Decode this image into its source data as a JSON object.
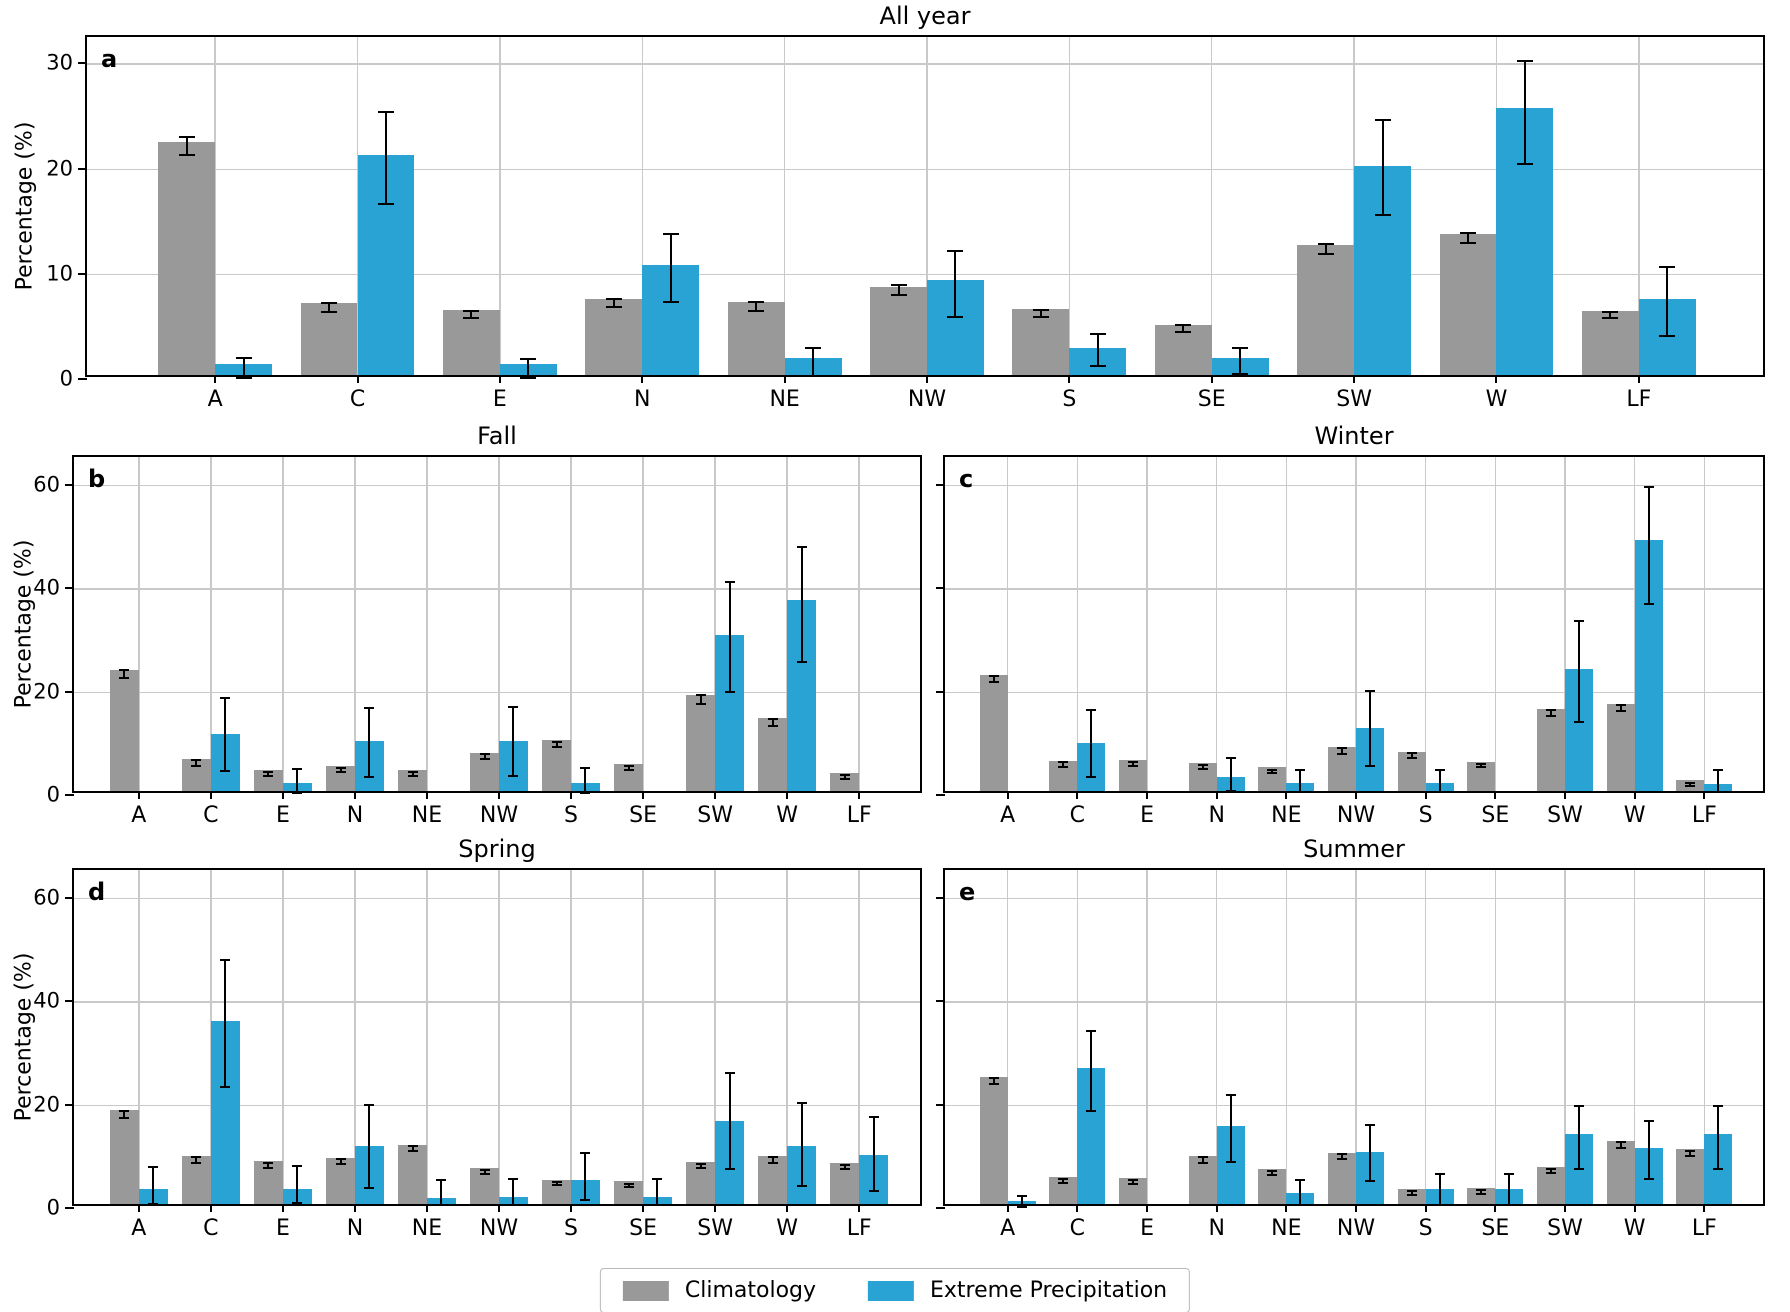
{
  "colors": {
    "climatology": "#999999",
    "extreme_precipitation": "#29A2D4",
    "grid": "#c9c9c9",
    "error_bar": "#000000"
  },
  "legend": {
    "items": [
      {
        "label": "Climatology",
        "color": "#999999"
      },
      {
        "label": "Extreme Precipitation",
        "color": "#29A2D4"
      }
    ]
  },
  "chart_data": [
    {
      "type": "bar",
      "letter": "a",
      "title": "All year",
      "ylabel": "Percentage (%)",
      "show_y_labels": true,
      "yticks": [
        0,
        10,
        20,
        30
      ],
      "ylim": [
        0,
        32.5
      ],
      "grid": true,
      "categories": [
        "A",
        "C",
        "E",
        "N",
        "NE",
        "NW",
        "S",
        "SE",
        "SW",
        "W",
        "LF"
      ],
      "series": [
        {
          "name": "Climatology",
          "color": "#999999",
          "values": [
            22.1,
            6.8,
            6.2,
            7.2,
            6.9,
            8.4,
            6.3,
            4.8,
            12.4,
            13.4,
            6.1
          ],
          "err_low": [
            21.3,
            6.4,
            5.8,
            6.8,
            6.5,
            8.0,
            5.9,
            4.5,
            11.9,
            12.9,
            5.8
          ],
          "err_high": [
            23.0,
            7.2,
            6.5,
            7.6,
            7.3,
            8.9,
            6.6,
            5.1,
            12.8,
            13.9,
            6.4
          ]
        },
        {
          "name": "Extreme Precipitation",
          "color": "#29A2D4",
          "values": [
            1.0,
            20.9,
            1.0,
            10.5,
            1.6,
            9.0,
            2.6,
            1.6,
            19.9,
            25.4,
            7.2
          ],
          "err_low": [
            0.1,
            16.6,
            0.1,
            7.3,
            0.3,
            5.9,
            1.2,
            0.5,
            15.6,
            20.4,
            4.1
          ],
          "err_high": [
            2.0,
            25.4,
            1.9,
            13.8,
            2.9,
            12.2,
            4.3,
            2.9,
            24.6,
            30.2,
            10.6
          ]
        }
      ]
    },
    {
      "type": "bar",
      "letter": "b",
      "title": "Fall",
      "ylabel": "Percentage (%)",
      "show_y_labels": true,
      "yticks": [
        0,
        20,
        40,
        60
      ],
      "ylim": [
        0,
        65.4
      ],
      "grid": true,
      "categories": [
        "A",
        "C",
        "E",
        "N",
        "NE",
        "NW",
        "S",
        "SE",
        "SW",
        "W",
        "LF"
      ],
      "series": [
        {
          "name": "Climatology",
          "color": "#999999",
          "values": [
            23.4,
            6.2,
            4.0,
            4.8,
            4.0,
            7.4,
            9.8,
            5.3,
            18.5,
            14.1,
            3.5
          ],
          "err_low": [
            22.7,
            5.7,
            3.6,
            4.4,
            3.6,
            6.9,
            9.3,
            4.9,
            17.7,
            13.4,
            3.1
          ],
          "err_high": [
            24.1,
            6.7,
            4.4,
            5.2,
            4.4,
            7.9,
            10.3,
            5.7,
            19.3,
            14.8,
            3.9
          ]
        },
        {
          "name": "Extreme Precipitation",
          "color": "#29A2D4",
          "values": [
            null,
            11.0,
            1.5,
            9.6,
            null,
            9.6,
            1.5,
            null,
            30.2,
            37.0,
            null
          ],
          "err_low": [
            null,
            4.6,
            0.3,
            3.5,
            null,
            3.7,
            0.3,
            null,
            20.0,
            25.8,
            null
          ],
          "err_high": [
            null,
            18.7,
            5.1,
            16.8,
            null,
            17.0,
            5.3,
            null,
            41.2,
            48.0,
            null
          ]
        }
      ]
    },
    {
      "type": "bar",
      "letter": "c",
      "title": "Winter",
      "ylabel": null,
      "show_y_labels": false,
      "yticks": [
        0,
        20,
        40,
        60
      ],
      "ylim": [
        0,
        65.4
      ],
      "grid": true,
      "categories": [
        "A",
        "C",
        "E",
        "N",
        "NE",
        "NW",
        "S",
        "SE",
        "SW",
        "W",
        "LF"
      ],
      "series": [
        {
          "name": "Climatology",
          "color": "#999999",
          "values": [
            22.4,
            5.9,
            6.0,
            5.5,
            4.6,
            8.5,
            7.6,
            5.7,
            15.9,
            16.9,
            2.1
          ],
          "err_low": [
            21.8,
            5.5,
            5.6,
            5.1,
            4.3,
            8.0,
            7.1,
            5.4,
            15.3,
            16.3,
            1.8
          ],
          "err_high": [
            23.0,
            6.3,
            6.4,
            5.9,
            4.9,
            9.0,
            8.1,
            6.0,
            16.5,
            17.5,
            2.4
          ]
        },
        {
          "name": "Extreme Precipitation",
          "color": "#29A2D4",
          "values": [
            null,
            9.3,
            null,
            2.7,
            1.5,
            12.1,
            1.5,
            null,
            23.6,
            48.5,
            1.4
          ],
          "err_low": [
            null,
            3.5,
            null,
            0.8,
            0.6,
            5.6,
            0.6,
            null,
            14.2,
            36.9,
            0.5
          ],
          "err_high": [
            null,
            16.5,
            null,
            7.1,
            4.8,
            20.1,
            4.8,
            null,
            33.6,
            59.5,
            4.9
          ]
        }
      ]
    },
    {
      "type": "bar",
      "letter": "d",
      "title": "Spring",
      "ylabel": "Percentage (%)",
      "show_y_labels": true,
      "yticks": [
        0,
        20,
        40,
        60
      ],
      "ylim": [
        0,
        65.4
      ],
      "grid": true,
      "categories": [
        "A",
        "C",
        "E",
        "N",
        "NE",
        "NW",
        "S",
        "SE",
        "SW",
        "W",
        "LF"
      ],
      "series": [
        {
          "name": "Climatology",
          "color": "#999999",
          "values": [
            18.1,
            9.3,
            8.3,
            9.0,
            11.5,
            7.0,
            4.7,
            4.4,
            8.1,
            9.3,
            7.9
          ],
          "err_low": [
            17.5,
            8.8,
            7.8,
            8.5,
            11.0,
            6.6,
            4.4,
            4.1,
            7.7,
            8.8,
            7.5
          ],
          "err_high": [
            18.7,
            9.8,
            8.8,
            9.5,
            12.0,
            7.4,
            5.0,
            4.7,
            8.5,
            9.8,
            8.3
          ]
        },
        {
          "name": "Extreme Precipitation",
          "color": "#29A2D4",
          "values": [
            3.0,
            35.5,
            2.9,
            11.2,
            1.2,
            1.3,
            4.7,
            1.3,
            16.0,
            11.2,
            9.4
          ],
          "err_low": [
            0.8,
            23.5,
            0.9,
            3.9,
            0.5,
            0.6,
            1.6,
            0.6,
            7.5,
            4.2,
            3.3
          ],
          "err_high": [
            8.0,
            48.0,
            8.1,
            19.9,
            5.4,
            5.7,
            10.7,
            5.7,
            26.1,
            20.3,
            17.7
          ]
        }
      ]
    },
    {
      "type": "bar",
      "letter": "e",
      "title": "Summer",
      "ylabel": null,
      "show_y_labels": false,
      "yticks": [
        0,
        20,
        40,
        60
      ],
      "ylim": [
        0,
        65.4
      ],
      "grid": true,
      "categories": [
        "A",
        "C",
        "E",
        "N",
        "NE",
        "NW",
        "S",
        "SE",
        "SW",
        "W",
        "LF"
      ],
      "series": [
        {
          "name": "Climatology",
          "color": "#999999",
          "values": [
            24.6,
            5.3,
            5.0,
            9.3,
            6.7,
            9.9,
            2.9,
            3.1,
            7.2,
            12.2,
            10.6
          ],
          "err_low": [
            24.0,
            4.9,
            4.6,
            8.8,
            6.3,
            9.4,
            2.6,
            2.8,
            6.8,
            11.7,
            10.1
          ],
          "err_high": [
            25.2,
            5.7,
            5.4,
            9.8,
            7.1,
            10.4,
            3.2,
            3.4,
            7.6,
            12.7,
            11.1
          ]
        },
        {
          "name": "Extreme Precipitation",
          "color": "#29A2D4",
          "values": [
            0.6,
            26.3,
            null,
            15.0,
            2.1,
            10.1,
            2.9,
            2.9,
            13.5,
            10.9,
            13.5
          ],
          "err_low": [
            0.1,
            18.8,
            null,
            8.9,
            0.5,
            5.2,
            0.5,
            0.5,
            7.6,
            5.7,
            7.5
          ],
          "err_high": [
            2.3,
            34.3,
            null,
            21.9,
            5.4,
            16.0,
            6.6,
            6.5,
            19.7,
            16.8,
            19.7
          ]
        }
      ]
    }
  ]
}
